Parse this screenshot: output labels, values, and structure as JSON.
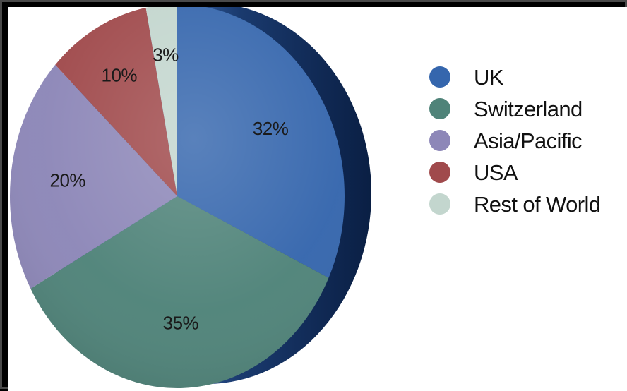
{
  "chart_data": {
    "type": "pie",
    "title": "",
    "legend_position": "right",
    "slices": [
      {
        "label": "UK",
        "value": 32,
        "display": "32%",
        "color": "#3566ad"
      },
      {
        "label": "Switzerland",
        "value": 35,
        "display": "35%",
        "color": "#4f8379"
      },
      {
        "label": "Asia/Pacific",
        "value": 20,
        "display": "20%",
        "color": "#8d87b8"
      },
      {
        "label": "USA",
        "value": 10,
        "display": "10%",
        "color": "#a04a4c"
      },
      {
        "label": "Rest of World",
        "value": 3,
        "display": "3%",
        "color": "#c3d6ce"
      }
    ]
  }
}
